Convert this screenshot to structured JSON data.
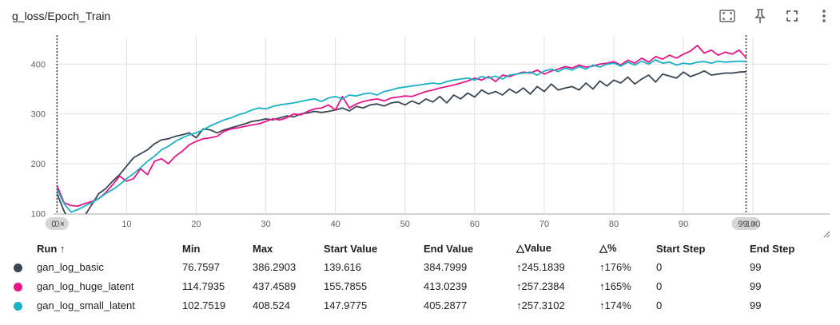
{
  "header": {
    "title": "g_loss/Epoch_Train"
  },
  "icons": {
    "fit": "fit-domain-icon",
    "pin": "pin-icon",
    "fullscreen": "fullscreen-icon",
    "more": "more-vert-icon"
  },
  "chart_data": {
    "type": "line",
    "title": "g_loss/Epoch_Train",
    "xlabel": "",
    "ylabel": "",
    "xlim": [
      -0.5,
      111
    ],
    "ylim": [
      99,
      455
    ],
    "x_ticks": [
      0,
      10,
      20,
      30,
      40,
      50,
      60,
      70,
      80,
      90,
      100
    ],
    "x_tick_labels": [
      "0",
      "10",
      "20",
      "30",
      "40",
      "50",
      "60",
      "70",
      "80",
      "90",
      "100"
    ],
    "y_ticks": [
      100,
      200,
      300,
      400
    ],
    "y_tick_labels": [
      "100",
      "200",
      "300",
      "400"
    ],
    "grid": true,
    "step_markers": [
      {
        "step": 0,
        "label": "0"
      },
      {
        "step": 99,
        "label": "99"
      }
    ],
    "series": [
      {
        "name": "gan_log_basic",
        "color": "#3a4556",
        "values": [
          139.6,
          105,
          76.8,
          84,
          96,
          118,
          140,
          150,
          165,
          178,
          195,
          212,
          220,
          228,
          240,
          248,
          250,
          255,
          258,
          262,
          252,
          270,
          268,
          262,
          268,
          272,
          276,
          280,
          285,
          287,
          290,
          288,
          292,
          296,
          294,
          300,
          302,
          305,
          303,
          305,
          308,
          312,
          306,
          315,
          312,
          318,
          320,
          316,
          322,
          324,
          318,
          326,
          320,
          330,
          324,
          335,
          322,
          338,
          330,
          342,
          334,
          348,
          340,
          345,
          338,
          350,
          342,
          352,
          340,
          355,
          345,
          360,
          348,
          352,
          355,
          348,
          362,
          350,
          366,
          356,
          368,
          362,
          374,
          360,
          370,
          378,
          364,
          380,
          376,
          372,
          384,
          375,
          380,
          386.3,
          378,
          380,
          382,
          382,
          384,
          384.8
        ]
      },
      {
        "name": "gan_log_huge_latent",
        "color": "#e6168a",
        "values": [
          155.8,
          122,
          116,
          114.8,
          120,
          124,
          130,
          142,
          158,
          175,
          165,
          170,
          190,
          178,
          205,
          210,
          200,
          215,
          225,
          238,
          245,
          250,
          252,
          255,
          265,
          270,
          272,
          275,
          278,
          280,
          285,
          290,
          288,
          292,
          300,
          298,
          305,
          310,
          312,
          318,
          308,
          335,
          312,
          320,
          325,
          328,
          330,
          326,
          332,
          334,
          336,
          335,
          340,
          345,
          348,
          352,
          355,
          358,
          362,
          366,
          372,
          368,
          375,
          365,
          378,
          375,
          380,
          384,
          382,
          388,
          380,
          386,
          390,
          395,
          392,
          398,
          394,
          396,
          400,
          402,
          405,
          398,
          408,
          402,
          412,
          404,
          415,
          410,
          418,
          412,
          420,
          426,
          437.5,
          422,
          428,
          418,
          424,
          420,
          428,
          413.0
        ]
      },
      {
        "name": "gan_log_small_latent",
        "color": "#1ab2c6",
        "values": [
          148,
          120,
          102.8,
          108,
          115,
          122,
          130,
          140,
          148,
          158,
          170,
          180,
          192,
          205,
          215,
          228,
          235,
          245,
          252,
          258,
          262,
          268,
          276,
          282,
          288,
          292,
          298,
          302,
          308,
          312,
          310,
          315,
          318,
          320,
          322,
          325,
          328,
          330,
          325,
          332,
          335,
          330,
          338,
          336,
          340,
          342,
          338,
          345,
          348,
          352,
          354,
          356,
          358,
          360,
          362,
          360,
          365,
          368,
          370,
          372,
          368,
          375,
          372,
          376,
          370,
          378,
          380,
          382,
          384,
          378,
          386,
          390,
          385,
          392,
          388,
          395,
          390,
          398,
          394,
          400,
          402,
          396,
          404,
          398,
          406,
          400,
          408.5,
          402,
          404,
          398,
          402,
          400,
          404,
          405,
          402,
          406,
          404,
          405,
          406,
          405.3
        ]
      }
    ]
  },
  "table": {
    "columns": [
      "Run ↑",
      "Min",
      "Max",
      "Start Value",
      "End Value",
      "△Value",
      "△%",
      "Start Step",
      "End Step"
    ],
    "rows": [
      {
        "color": "#3a4556",
        "run": "gan_log_basic",
        "min": "76.7597",
        "max": "386.2903",
        "start_value": "139.616",
        "end_value": "384.7999",
        "delta_value": "↑245.1839",
        "delta_pct": "↑176%",
        "start_step": "0",
        "end_step": "99"
      },
      {
        "color": "#e6168a",
        "run": "gan_log_huge_latent",
        "min": "114.7935",
        "max": "437.4589",
        "start_value": "155.7855",
        "end_value": "413.0239",
        "delta_value": "↑257.2384",
        "delta_pct": "↑165%",
        "start_step": "0",
        "end_step": "99"
      },
      {
        "color": "#1ab2c6",
        "run": "gan_log_small_latent",
        "min": "102.7519",
        "max": "408.524",
        "start_value": "147.9775",
        "end_value": "405.2877",
        "delta_value": "↑257.3102",
        "delta_pct": "↑174%",
        "start_step": "0",
        "end_step": "99"
      }
    ]
  }
}
